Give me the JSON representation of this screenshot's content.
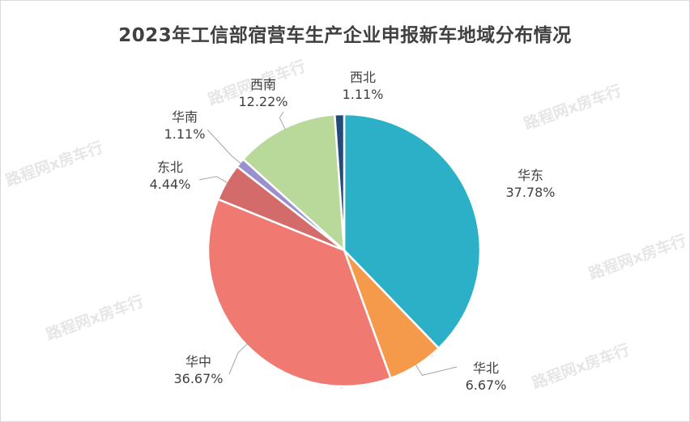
{
  "chart_data": {
    "type": "pie",
    "title": "2023年工信部宿营车生产企业申报新车地域分布情况",
    "slices": [
      {
        "name": "华东",
        "value": 37.78,
        "label": "37.78%",
        "color": "#2cb0c7"
      },
      {
        "name": "华北",
        "value": 6.67,
        "label": "6.67%",
        "color": "#f59a4b"
      },
      {
        "name": "华中",
        "value": 36.67,
        "label": "36.67%",
        "color": "#f07a72"
      },
      {
        "name": "东北",
        "value": 4.44,
        "label": "4.44%",
        "color": "#d46b6b"
      },
      {
        "name": "华南",
        "value": 1.11,
        "label": "1.11%",
        "color": "#9a8fcf"
      },
      {
        "name": "西南",
        "value": 12.22,
        "label": "12.22%",
        "color": "#b9d99a"
      },
      {
        "name": "西北",
        "value": 1.11,
        "label": "1.11%",
        "color": "#234a7a"
      }
    ],
    "start_angle_deg": 0,
    "direction": "clockwise",
    "legend": "none",
    "data_labels": "outside-with-leader-lines"
  },
  "watermark": {
    "text": "路程网x房车行"
  }
}
